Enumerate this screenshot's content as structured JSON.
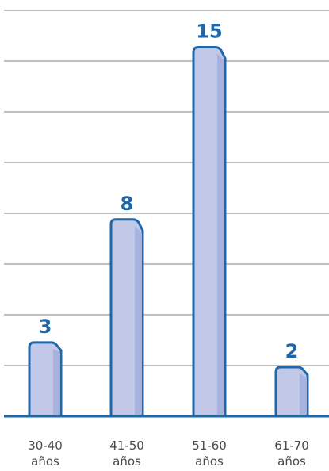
{
  "chart_data": {
    "type": "bar",
    "categories": [
      [
        "30-40",
        "años"
      ],
      [
        "41-50",
        "años"
      ],
      [
        "51-60",
        "años"
      ],
      [
        "61-70",
        "años"
      ]
    ],
    "values": [
      3,
      8,
      15,
      2
    ],
    "ylim": [
      0,
      16.5
    ],
    "grid": true,
    "colors": {
      "bar_fill": "#c2c9e8",
      "bar_shadow": "#a7b1dd",
      "bar_outline": "#1f67a8",
      "label": "#1f67a8",
      "grid": "#7f7f7f",
      "axis": "#1f67a8",
      "tick_text": "#4a4a4a"
    }
  }
}
